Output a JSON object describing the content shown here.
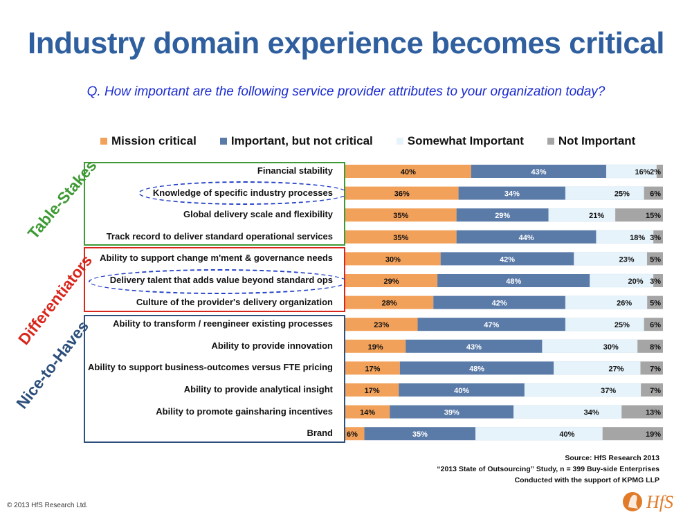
{
  "title": "Industry domain experience becomes critical",
  "question": "Q. How important are the following service provider attributes to your organization today?",
  "groups": [
    {
      "label": "Table-Stakes",
      "color": "#3e9a35"
    },
    {
      "label": "Differentiators",
      "color": "#d9261c"
    },
    {
      "label": "Nice-to-Haves",
      "color": "#2c4f7c"
    }
  ],
  "source": {
    "line1": "Source: HfS Research 2013",
    "line2": "“2013 State of Outsourcing” Study, n = 399 Buy-side Enterprises",
    "line3": "Conducted with the support of KPMG LLP"
  },
  "copyright": "© 2013 HfS Research Ltd.",
  "logo_text": "HfS",
  "chart_data": {
    "type": "bar",
    "stacked": true,
    "orientation": "horizontal",
    "categories": [
      "Financial stability",
      "Knowledge of specific industry processes",
      "Global delivery scale and flexibility",
      "Track record to deliver standard operational services",
      "Ability to support change m'ment & governance needs",
      "Delivery talent that adds value beyond standard ops",
      "Culture of the provider's delivery organization",
      "Ability to transform / reengineer existing processes",
      "Ability to provide innovation",
      "Ability to support business-outcomes versus FTE pricing",
      "Ability to provide analytical insight",
      "Ability to promote gainsharing incentives",
      "Brand"
    ],
    "series": [
      {
        "name": "Mission critical",
        "color": "#f2a15a",
        "values": [
          40,
          36,
          35,
          35,
          30,
          29,
          28,
          23,
          19,
          17,
          17,
          14,
          6
        ]
      },
      {
        "name": "Important, but not critical",
        "color": "#5a7aa8",
        "values": [
          43,
          34,
          29,
          44,
          42,
          48,
          42,
          47,
          43,
          48,
          40,
          39,
          35
        ]
      },
      {
        "name": "Somewhat Important",
        "color": "#e6f3fb",
        "values": [
          16,
          25,
          21,
          18,
          23,
          20,
          26,
          25,
          30,
          27,
          37,
          34,
          40
        ]
      },
      {
        "name": "Not Important",
        "color": "#a5a5a5",
        "values": [
          2,
          6,
          15,
          3,
          5,
          3,
          5,
          6,
          8,
          7,
          7,
          13,
          19
        ]
      }
    ],
    "value_suffix": "%",
    "legend_position": "top",
    "highlighted_categories": [
      "Knowledge of specific industry processes",
      "Delivery talent that adds value beyond standard ops"
    ]
  }
}
